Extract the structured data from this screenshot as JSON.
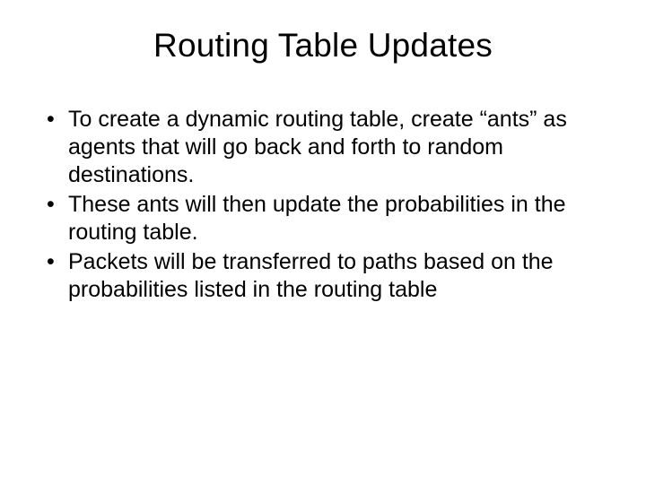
{
  "slide": {
    "title": "Routing Table Updates",
    "bullets": [
      "To create a dynamic routing table, create “ants” as agents that will go back and forth to random destinations.",
      "These ants will then update the probabilities in the routing table.",
      "Packets will be transferred to paths based on the probabilities listed in the routing table"
    ],
    "title_fontsize": 37,
    "body_fontsize": 25,
    "background_color": "#ffffff",
    "text_color": "#000000",
    "font_family": "Arial"
  }
}
